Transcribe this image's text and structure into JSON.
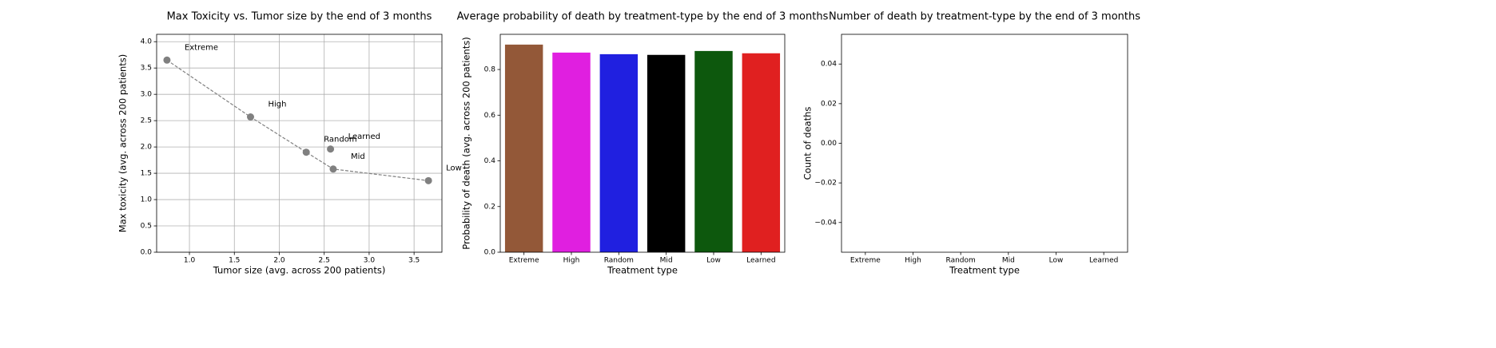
{
  "chart_data": [
    {
      "type": "scatter",
      "title": "Max Toxicity vs. Tumor size by the end of 3 months",
      "x_label": "Tumor size (avg. across 200 patients)",
      "y_label": "Max toxicity (avg. across 200 patients)",
      "labels": [
        "Extreme",
        "High",
        "Random",
        "Mid",
        "Low",
        "Learned"
      ],
      "x": [
        0.75,
        1.68,
        2.3,
        2.6,
        3.66,
        2.57
      ],
      "values": [
        3.65,
        2.57,
        1.9,
        1.58,
        1.36,
        1.96
      ],
      "color": "#808080",
      "line": {
        "style": "dashed",
        "color": "#808080",
        "through": [
          "Extreme",
          "High",
          "Random",
          "Mid",
          "Low"
        ]
      },
      "xlim": [
        0.635,
        3.81
      ],
      "xticks": [
        {
          "value": 1.0,
          "label": "1.0"
        },
        {
          "value": 1.5,
          "label": "1.5"
        },
        {
          "value": 2.0,
          "label": "2.0"
        },
        {
          "value": 2.5,
          "label": "2.5"
        },
        {
          "value": 3.0,
          "label": "3.0"
        },
        {
          "value": 3.5,
          "label": "3.5"
        }
      ],
      "ylim": [
        0,
        4.14
      ],
      "yticks": [
        {
          "value": 0,
          "label": "0.0"
        },
        {
          "value": 0.5,
          "label": "0.5"
        },
        {
          "value": 1.0,
          "label": "1.0"
        },
        {
          "value": 1.5,
          "label": "1.5"
        },
        {
          "value": 2.0,
          "label": "2.0"
        },
        {
          "value": 2.5,
          "label": "2.5"
        },
        {
          "value": 3.0,
          "label": "3.0"
        },
        {
          "value": 3.5,
          "label": "3.5"
        },
        {
          "value": 4.0,
          "label": "4.0"
        }
      ],
      "grid": true
    },
    {
      "type": "bar",
      "title": "Average probability of death by treatment-type by the end of 3 months",
      "x_label": "Treatment type",
      "y_label": "Probability of death (avg. across 200 patients)",
      "categories": [
        "Extreme",
        "High",
        "Random",
        "Mid",
        "Low",
        "Learned"
      ],
      "values": [
        0.909,
        0.874,
        0.867,
        0.864,
        0.881,
        0.871
      ],
      "colors": [
        "#935838",
        "#e01fe0",
        "#2020e0",
        "#000000",
        "#0d580d",
        "#e02020"
      ],
      "ylim": [
        0,
        0.954
      ],
      "yticks": [
        {
          "value": 0,
          "label": "0.0"
        },
        0.2,
        0.4,
        0.6,
        0.8
      ],
      "grid": false
    },
    {
      "type": "bar",
      "title": "Number of death by treatment-type by the end of 3 months",
      "x_label": "Treatment type",
      "y_label": "Count of deaths",
      "categories": [
        "Extreme",
        "High",
        "Random",
        "Mid",
        "Low",
        "Learned"
      ],
      "ylim": [
        -0.055,
        0.055
      ],
      "yticks": [
        {
          "value": -0.04,
          "label": "−0.04"
        },
        {
          "value": -0.02,
          "label": "−0.02"
        },
        {
          "value": 0,
          "label": "0.00"
        },
        0.02,
        0.04
      ],
      "grid": false
    }
  ]
}
